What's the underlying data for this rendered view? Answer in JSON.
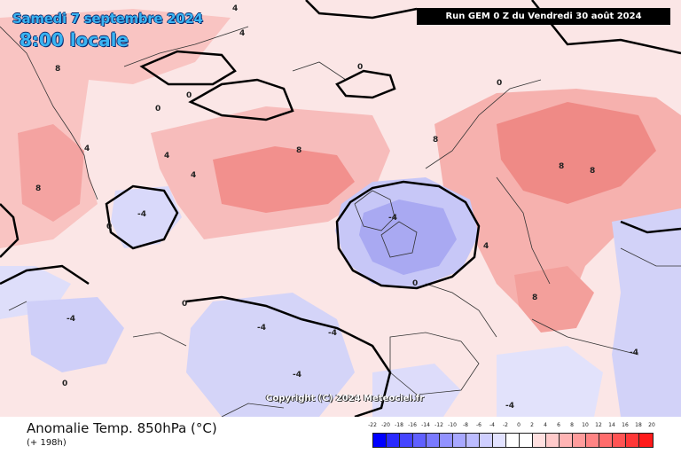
{
  "header": {
    "date": "Samedi 7 septembre 2024",
    "time": "8:00 locale",
    "run": "Run GEM 0 Z du Vendredi 30 août 2024"
  },
  "copyright": "Copyright (C) 2024 Meteociel.fr",
  "footer": {
    "variable": "Anomalie Temp. 850hPa (°C)",
    "lead": "(+ 198h)"
  },
  "legend": {
    "ticks": [
      "-22",
      "-20",
      "-18",
      "-16",
      "-14",
      "-12",
      "-10",
      "-8",
      "-6",
      "-4",
      "-2",
      "0",
      "2",
      "4",
      "6",
      "8",
      "10",
      "12",
      "14",
      "16",
      "18",
      "20"
    ],
    "colors": [
      "#0000ff",
      "#2a2aff",
      "#4545ff",
      "#6060ff",
      "#7a7aff",
      "#9292ff",
      "#a8a8ff",
      "#bcbcff",
      "#cfcfff",
      "#e2e2ff",
      "#ffffff",
      "#ffffff",
      "#ffe0e0",
      "#ffcaca",
      "#ffb4b4",
      "#ff9c9c",
      "#ff8484",
      "#ff6c6c",
      "#ff5454",
      "#ff3838",
      "#ff1a1a"
    ]
  },
  "contour_labels": [
    "0",
    "4",
    "8",
    "-4"
  ]
}
